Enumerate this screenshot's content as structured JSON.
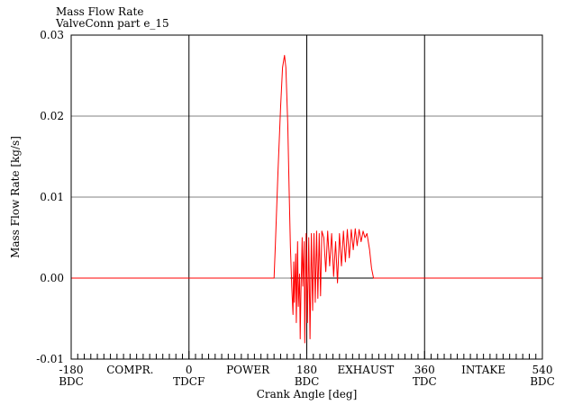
{
  "chart_data": {
    "type": "line",
    "title": "Mass Flow Rate",
    "subtitle": "ValveConn part e_15",
    "xlabel": "Crank Angle [deg]",
    "ylabel": "Mass Flow Rate [kg/s]",
    "xlim": [
      -180,
      540
    ],
    "ylim": [
      -0.01,
      0.03
    ],
    "grid": true,
    "x_ticks": [
      -180,
      0,
      180,
      360,
      540
    ],
    "x_tick_labels": [
      "-180",
      "0",
      "180",
      "360",
      "540"
    ],
    "x_sublabels": [
      {
        "x": -180,
        "text": "BDC"
      },
      {
        "x": 0,
        "text": "TDCF"
      },
      {
        "x": 180,
        "text": "BDC"
      },
      {
        "x": 360,
        "text": "TDC"
      },
      {
        "x": 540,
        "text": "BDC"
      }
    ],
    "phase_labels": [
      {
        "x": -90,
        "text": "COMPR."
      },
      {
        "x": 90,
        "text": "POWER"
      },
      {
        "x": 270,
        "text": "EXHAUST"
      },
      {
        "x": 450,
        "text": "INTAKE"
      }
    ],
    "y_ticks": [
      -0.01,
      0.0,
      0.01,
      0.02,
      0.03
    ],
    "y_tick_labels": [
      "-0.01",
      "0.00",
      "0.01",
      "0.02",
      "0.03"
    ],
    "colors": {
      "series": "#ff0000",
      "axes": "#000000",
      "grid": "#808080"
    },
    "series": [
      {
        "values": [
          [
            -180,
            0
          ],
          [
            130,
            0
          ],
          [
            132,
            0.004
          ],
          [
            136,
            0.013
          ],
          [
            140,
            0.021
          ],
          [
            143,
            0.026
          ],
          [
            146,
            0.0275
          ],
          [
            148,
            0.026
          ],
          [
            151,
            0.019
          ],
          [
            153,
            0.011
          ],
          [
            155,
            0.004
          ],
          [
            157,
            -0.001
          ],
          [
            159,
            -0.0045
          ],
          [
            160,
            0.002
          ],
          [
            161,
            -0.003
          ],
          [
            163,
            0.003
          ],
          [
            164,
            -0.0055
          ],
          [
            166,
            0.0045
          ],
          [
            167,
            -0.0035
          ],
          [
            169,
            0.0005
          ],
          [
            170,
            -0.0075
          ],
          [
            171,
            -0.002
          ],
          [
            173,
            0.005
          ],
          [
            174,
            -0.001
          ],
          [
            176,
            0.0045
          ],
          [
            177,
            -0.008
          ],
          [
            179,
            0.0055
          ],
          [
            181,
            -0.0055
          ],
          [
            183,
            0.005
          ],
          [
            185,
            -0.0075
          ],
          [
            187,
            0.0055
          ],
          [
            189,
            -0.004
          ],
          [
            191,
            0.0055
          ],
          [
            193,
            -0.003
          ],
          [
            195,
            0.0058
          ],
          [
            197,
            -0.0025
          ],
          [
            199,
            0.0055
          ],
          [
            201,
            -0.0022
          ],
          [
            203,
            0.0058
          ],
          [
            206,
            0.005
          ],
          [
            209,
            0.0008
          ],
          [
            212,
            0.0058
          ],
          [
            215,
            0.0015
          ],
          [
            218,
            0.0055
          ],
          [
            221,
            0.0002
          ],
          [
            224,
            0.0045
          ],
          [
            227,
            -0.0006
          ],
          [
            230,
            0.0055
          ],
          [
            233,
            0.0015
          ],
          [
            236,
            0.0058
          ],
          [
            239,
            0.002
          ],
          [
            242,
            0.006
          ],
          [
            245,
            0.0025
          ],
          [
            248,
            0.006
          ],
          [
            251,
            0.0035
          ],
          [
            254,
            0.0061
          ],
          [
            257,
            0.004
          ],
          [
            260,
            0.006
          ],
          [
            263,
            0.0045
          ],
          [
            266,
            0.0058
          ],
          [
            269,
            0.005
          ],
          [
            272,
            0.0055
          ],
          [
            276,
            0.0035
          ],
          [
            279,
            0.0012
          ],
          [
            282,
            0
          ],
          [
            540,
            0
          ]
        ]
      }
    ],
    "aux_segments": [
      {
        "x1": 155,
        "x2": 282,
        "y": 0
      }
    ]
  }
}
